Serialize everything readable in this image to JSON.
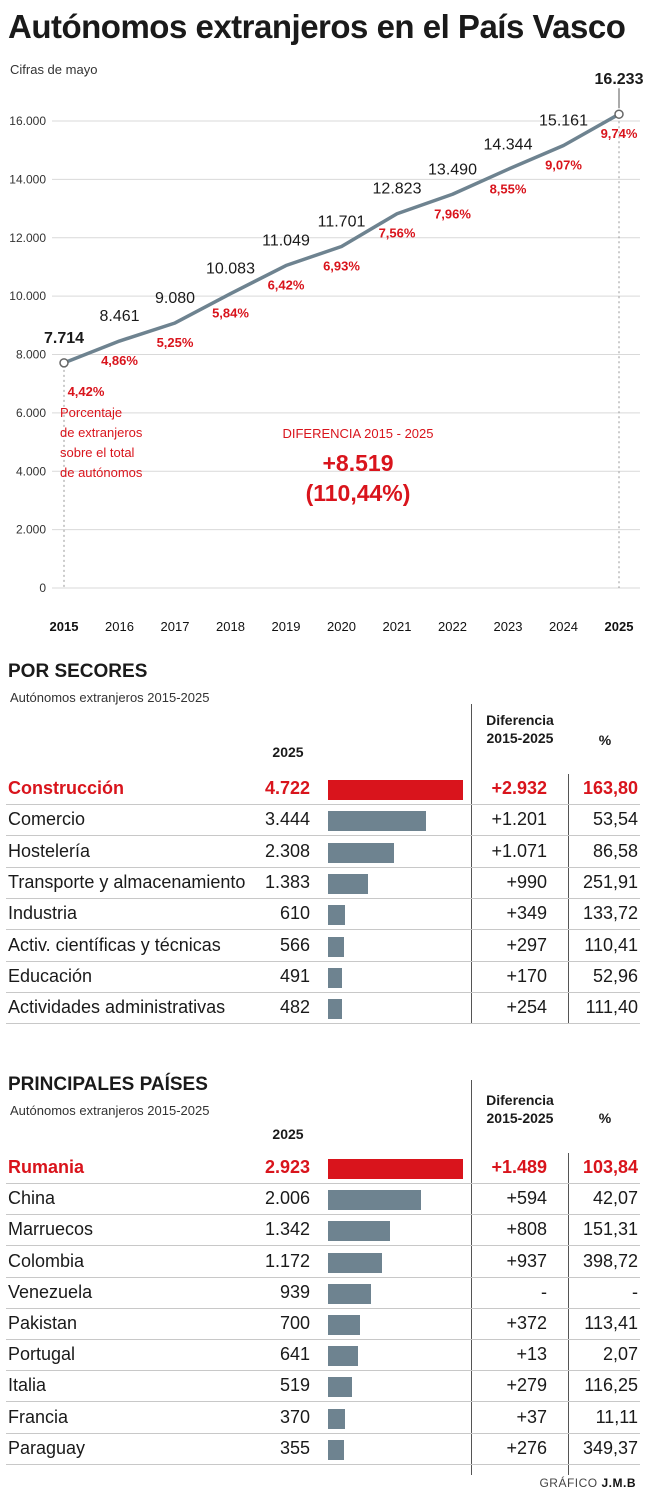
{
  "header": {
    "title": "Autónomos extranjeros en el País Vasco",
    "subtitle": "Cifras de mayo"
  },
  "colors": {
    "accent": "#d9141c",
    "bar": "#6e8390",
    "line": "#6e8390"
  },
  "chart_data": [
    {
      "type": "line",
      "x": [
        "2015",
        "2016",
        "2017",
        "2018",
        "2019",
        "2020",
        "2021",
        "2022",
        "2023",
        "2024",
        "2025"
      ],
      "values": [
        7714,
        8461,
        9080,
        10083,
        11049,
        11701,
        12823,
        13490,
        14344,
        15161,
        16233
      ],
      "value_labels": [
        "7.714",
        "8.461",
        "9.080",
        "10.083",
        "11.049",
        "11.701",
        "12.823",
        "13.490",
        "14.344",
        "15.161",
        "16.233"
      ],
      "percent_labels": [
        "4,42%",
        "4,86%",
        "5,25%",
        "5,84%",
        "6,42%",
        "6,93%",
        "7,56%",
        "7,96%",
        "8,55%",
        "9,07%",
        "9,74%"
      ],
      "yticks": [
        "0",
        "2.000",
        "4.000",
        "6.000",
        "8.000",
        "10.000",
        "12.000",
        "14.000",
        "16.000"
      ],
      "ylim": [
        0,
        16000
      ],
      "annotation": [
        "Porcentaje",
        "de extranjeros",
        "sobre el total",
        "de autónomos"
      ],
      "difference": {
        "label": "DIFERENCIA 2015 - 2025",
        "value": "+8.519",
        "percent": "(110,44%)"
      }
    },
    {
      "type": "bar",
      "title": "POR SECORES",
      "subtitle": "Autónomos extranjeros 2015-2025",
      "columns": {
        "year": "2025",
        "diff1": "Diferencia",
        "diff2": "2015-2025",
        "pct": "%"
      },
      "categories": [
        "Construcción",
        "Comercio",
        "Hostelería",
        "Transporte y almacenamiento",
        "Industria",
        "Activ. científicas y técnicas",
        "Educación",
        "Actividades administrativas"
      ],
      "values": [
        4722,
        3444,
        2308,
        1383,
        610,
        566,
        491,
        482
      ],
      "value_labels": [
        "4.722",
        "3.444",
        "2.308",
        "1.383",
        "610",
        "566",
        "491",
        "482"
      ],
      "differences": [
        "+2.932",
        "+1.201",
        "+1.071",
        "+990",
        "+349",
        "+297",
        "+170",
        "+254"
      ],
      "percentages": [
        "163,80",
        "53,54",
        "86,58",
        "251,91",
        "133,72",
        "110,41",
        "52,96",
        "111,40"
      ]
    },
    {
      "type": "bar",
      "title": "PRINCIPALES PAÍSES",
      "subtitle": "Autónomos extranjeros 2015-2025",
      "columns": {
        "year": "2025",
        "diff1": "Diferencia",
        "diff2": "2015-2025",
        "pct": "%"
      },
      "categories": [
        "Rumania",
        "China",
        "Marruecos",
        "Colombia",
        "Venezuela",
        "Pakistan",
        "Portugal",
        "Italia",
        "Francia",
        "Paraguay"
      ],
      "values": [
        2923,
        2006,
        1342,
        1172,
        939,
        700,
        641,
        519,
        370,
        355
      ],
      "value_labels": [
        "2.923",
        "2.006",
        "1.342",
        "1.172",
        "939",
        "700",
        "641",
        "519",
        "370",
        "355"
      ],
      "differences": [
        "+1.489",
        "+594",
        "+808",
        "+937",
        "-",
        "+372",
        "+13",
        "+279",
        "+37",
        "+276"
      ],
      "percentages": [
        "103,84",
        "42,07",
        "151,31",
        "398,72",
        "-",
        "113,41",
        "2,07",
        "116,25",
        "11,11",
        "349,37"
      ]
    }
  ],
  "credit": {
    "prefix": "GRÁFICO",
    "author": "J.M.B"
  }
}
